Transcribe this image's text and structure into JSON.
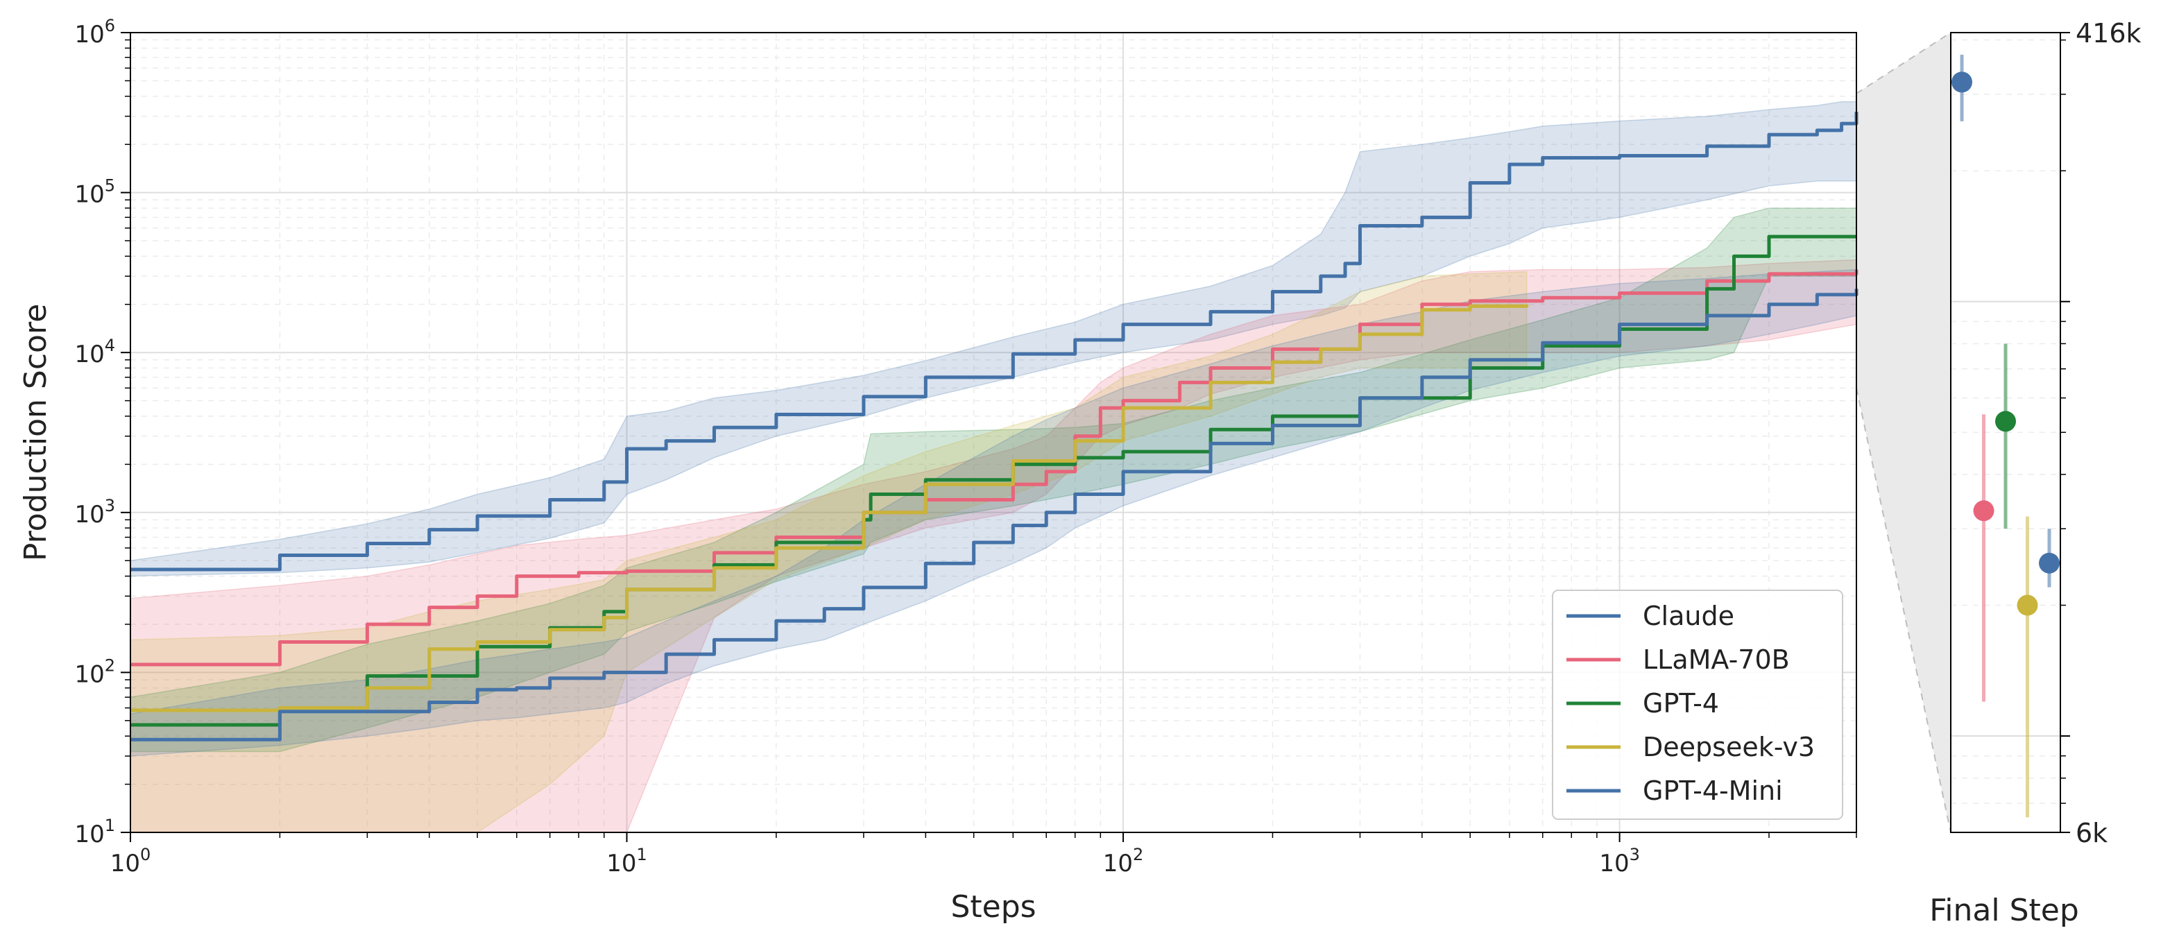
{
  "chart_data": [
    {
      "type": "line",
      "xlabel": "Steps",
      "ylabel": "Production Score",
      "xscale": "log",
      "yscale": "log",
      "xlim": [
        1,
        3000
      ],
      "ylim": [
        10,
        1000000
      ],
      "x_ticks": [
        {
          "value": 1,
          "base": "10",
          "exp": "0"
        },
        {
          "value": 10,
          "base": "10",
          "exp": "1"
        },
        {
          "value": 100,
          "base": "10",
          "exp": "2"
        },
        {
          "value": 1000,
          "base": "10",
          "exp": "3"
        }
      ],
      "y_ticks": [
        {
          "value": 10,
          "base": "10",
          "exp": "1"
        },
        {
          "value": 100,
          "base": "10",
          "exp": "2"
        },
        {
          "value": 1000,
          "base": "10",
          "exp": "3"
        },
        {
          "value": 10000,
          "base": "10",
          "exp": "4"
        },
        {
          "value": 100000,
          "base": "10",
          "exp": "5"
        },
        {
          "value": 1000000,
          "base": "10",
          "exp": "6"
        }
      ],
      "grid": true,
      "legend_position": "bottom-right",
      "series": [
        {
          "name": "Claude",
          "color": "#4472a8",
          "x": [
            1,
            2,
            3,
            4,
            5,
            7,
            9,
            10,
            12,
            15,
            20,
            30,
            40,
            60,
            80,
            100,
            150,
            200,
            250,
            280,
            300,
            400,
            500,
            600,
            700,
            1000,
            1500,
            2000,
            2500,
            2800,
            3000
          ],
          "y": [
            440,
            540,
            640,
            780,
            950,
            1200,
            1550,
            2500,
            2800,
            3400,
            4100,
            5300,
            7000,
            9800,
            12000,
            15000,
            18000,
            24000,
            30000,
            36000,
            62000,
            70000,
            115000,
            150000,
            165000,
            170000,
            195000,
            230000,
            245000,
            270000,
            320000
          ],
          "lower": [
            400,
            420,
            450,
            490,
            560,
            690,
            860,
            1300,
            1600,
            2200,
            3000,
            4000,
            5200,
            7000,
            8700,
            10000,
            12000,
            15000,
            17000,
            19000,
            24000,
            30000,
            40000,
            48000,
            60000,
            70000,
            90000,
            110000,
            118000,
            118000,
            118000
          ],
          "upper": [
            500,
            680,
            850,
            1050,
            1300,
            1650,
            2150,
            4000,
            4300,
            5200,
            5800,
            7200,
            8900,
            12500,
            15500,
            20000,
            26000,
            35000,
            55000,
            100000,
            180000,
            200000,
            220000,
            240000,
            260000,
            280000,
            300000,
            330000,
            350000,
            370000,
            370000
          ]
        },
        {
          "name": "LLaMA-70B",
          "color": "#e8647a",
          "x": [
            1,
            2,
            3,
            4,
            5,
            6,
            8,
            10,
            15,
            20,
            30,
            40,
            60,
            70,
            80,
            90,
            100,
            130,
            150,
            200,
            300,
            400,
            500,
            700,
            1000,
            1500,
            2000,
            3000
          ],
          "y": [
            112,
            155,
            200,
            255,
            300,
            400,
            420,
            430,
            560,
            700,
            1000,
            1200,
            1500,
            1800,
            3000,
            4500,
            5000,
            6500,
            8000,
            10500,
            15000,
            20000,
            21000,
            22000,
            23500,
            28000,
            31000,
            33000
          ],
          "lower": [
            10,
            10,
            10,
            10,
            10,
            10,
            10,
            10,
            220,
            400,
            600,
            800,
            1000,
            1300,
            2000,
            3000,
            3500,
            4500,
            5500,
            7000,
            9000,
            10000,
            10000,
            10000,
            10000,
            11000,
            12000,
            15000
          ],
          "upper": [
            290,
            350,
            400,
            470,
            550,
            620,
            680,
            720,
            900,
            1050,
            1500,
            1800,
            2500,
            3000,
            4500,
            6500,
            8000,
            11000,
            13000,
            17000,
            20000,
            28000,
            32000,
            33000,
            33000,
            34000,
            36000,
            38000
          ]
        },
        {
          "name": "GPT-4",
          "color": "#1f8236",
          "x": [
            1,
            2,
            3,
            5,
            7,
            9,
            10,
            15,
            20,
            30,
            31,
            40,
            60,
            80,
            100,
            150,
            200,
            300,
            500,
            700,
            1000,
            1500,
            1700,
            2000,
            3000
          ],
          "y": [
            47,
            60,
            95,
            145,
            190,
            240,
            330,
            470,
            650,
            900,
            1300,
            1600,
            2000,
            2200,
            2400,
            3300,
            4000,
            5200,
            8000,
            11000,
            14000,
            25000,
            40000,
            53000,
            53000
          ],
          "lower": [
            32,
            32,
            45,
            70,
            100,
            130,
            180,
            270,
            370,
            550,
            650,
            900,
            1100,
            1300,
            1500,
            2000,
            2500,
            3200,
            5000,
            6000,
            8000,
            9000,
            10000,
            30000,
            30000
          ],
          "upper": [
            70,
            100,
            150,
            210,
            270,
            350,
            450,
            650,
            1000,
            2000,
            3100,
            3200,
            3300,
            3400,
            3600,
            5000,
            6000,
            7500,
            12000,
            16000,
            22000,
            45000,
            70000,
            80000,
            80000
          ]
        },
        {
          "name": "Deepseek-v3",
          "color": "#c9b43c",
          "x": [
            1,
            2,
            3,
            4,
            5,
            7,
            9,
            10,
            15,
            20,
            30,
            40,
            60,
            80,
            100,
            150,
            200,
            250,
            300,
            400,
            500,
            650
          ],
          "y": [
            58,
            60,
            80,
            140,
            155,
            185,
            220,
            330,
            450,
            600,
            1000,
            1500,
            2100,
            2800,
            4500,
            6500,
            8700,
            10500,
            13000,
            18500,
            19500,
            20000
          ],
          "lower": [
            10,
            10,
            10,
            10,
            10,
            20,
            40,
            100,
            220,
            380,
            600,
            900,
            1300,
            1800,
            2800,
            4000,
            5500,
            7000,
            8000,
            8000,
            8000,
            8000
          ],
          "upper": [
            160,
            170,
            190,
            240,
            280,
            330,
            380,
            500,
            700,
            900,
            1700,
            2400,
            3500,
            4500,
            7000,
            9500,
            13000,
            18000,
            24000,
            30000,
            31000,
            32000
          ]
        },
        {
          "name": "GPT-4-Mini",
          "color": "#4472a8",
          "x": [
            1,
            2,
            3,
            4,
            5,
            6,
            7,
            9,
            10,
            12,
            15,
            20,
            25,
            30,
            40,
            50,
            60,
            70,
            80,
            100,
            150,
            200,
            300,
            400,
            500,
            700,
            1000,
            1500,
            2000,
            2500,
            3000
          ],
          "y": [
            38,
            57,
            57,
            65,
            78,
            80,
            92,
            100,
            100,
            130,
            160,
            210,
            250,
            340,
            480,
            650,
            830,
            1000,
            1300,
            1800,
            2700,
            3500,
            5200,
            7000,
            9000,
            11500,
            15000,
            17000,
            20000,
            23000,
            25000
          ],
          "lower": [
            30,
            35,
            40,
            45,
            50,
            52,
            55,
            60,
            65,
            85,
            110,
            140,
            160,
            200,
            280,
            380,
            480,
            600,
            800,
            1100,
            1700,
            2200,
            3200,
            4500,
            5800,
            7500,
            9500,
            11000,
            13000,
            15000,
            17000
          ],
          "upper": [
            55,
            80,
            90,
            105,
            120,
            130,
            140,
            155,
            165,
            210,
            280,
            400,
            600,
            900,
            1500,
            2200,
            3000,
            3800,
            4500,
            6000,
            8500,
            11000,
            15000,
            18000,
            21000,
            24000,
            27000,
            29000,
            31000,
            32000,
            33000
          ]
        }
      ]
    },
    {
      "type": "scatter",
      "xlabel": "Final Step",
      "yscale": "log",
      "ylim": [
        6000,
        416000
      ],
      "y_tick_labels": [
        {
          "value": 416000,
          "label": "416k"
        },
        {
          "value": 6000,
          "label": "6k"
        }
      ],
      "points": [
        {
          "series": "Claude",
          "color": "#4472a8",
          "y": 320000,
          "lower": 260000,
          "upper": 370000
        },
        {
          "series": "LLaMA-70B",
          "color": "#e8647a",
          "y": 33000,
          "lower": 12000,
          "upper": 55000
        },
        {
          "series": "GPT-4",
          "color": "#1f8236",
          "y": 53000,
          "lower": 30000,
          "upper": 80000
        },
        {
          "series": "Deepseek-v3",
          "color": "#c9b43c",
          "y": 20000,
          "lower": 6500,
          "upper": 32000
        },
        {
          "series": "GPT-4-Mini",
          "color": "#4472a8",
          "y": 25000,
          "lower": 22000,
          "upper": 30000
        }
      ]
    }
  ]
}
